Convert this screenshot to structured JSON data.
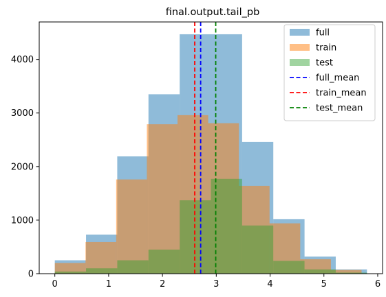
{
  "chart_data": {
    "type": "bar",
    "title": "final.output.tail_pb",
    "xlabel": "",
    "ylabel": "",
    "xlim": [
      -0.29,
      6.09
    ],
    "ylim": [
      0,
      4700
    ],
    "xticks": [
      0,
      1,
      2,
      3,
      4,
      5,
      6
    ],
    "yticks": [
      0,
      1000,
      2000,
      3000,
      4000
    ],
    "grid": false,
    "legend_position": "top-right",
    "series": [
      {
        "name": "full",
        "kind": "histogram",
        "color": "#1f77b4",
        "alpha": 0.5,
        "bin_edges": [
          0.0,
          0.58,
          1.16,
          1.74,
          2.32,
          2.9,
          3.48,
          4.06,
          4.64,
          5.22,
          5.8
        ],
        "values": [
          250,
          730,
          2190,
          3350,
          4470,
          4470,
          2460,
          1020,
          320,
          80
        ]
      },
      {
        "name": "train",
        "kind": "histogram",
        "color": "#ff7f0e",
        "alpha": 0.5,
        "bin_edges": [
          0.0,
          0.57,
          1.14,
          1.71,
          2.28,
          2.85,
          3.42,
          3.99,
          4.56,
          5.13,
          5.7
        ],
        "values": [
          200,
          590,
          1760,
          2790,
          2960,
          2810,
          1640,
          940,
          270,
          70
        ]
      },
      {
        "name": "test",
        "kind": "histogram",
        "color": "#2ca02c",
        "alpha": 0.45,
        "bin_edges": [
          0.0,
          0.58,
          1.16,
          1.74,
          2.32,
          2.9,
          3.48,
          4.06,
          4.64,
          5.22,
          5.8
        ],
        "values": [
          40,
          100,
          250,
          450,
          1370,
          1770,
          900,
          240,
          80,
          20
        ]
      }
    ],
    "lines": [
      {
        "name": "full_mean",
        "x": 2.71,
        "color": "#0000ff",
        "style": "dashed"
      },
      {
        "name": "train_mean",
        "x": 2.6,
        "color": "#ff0000",
        "style": "dashed"
      },
      {
        "name": "test_mean",
        "x": 2.99,
        "color": "#008000",
        "style": "dashed"
      }
    ]
  }
}
